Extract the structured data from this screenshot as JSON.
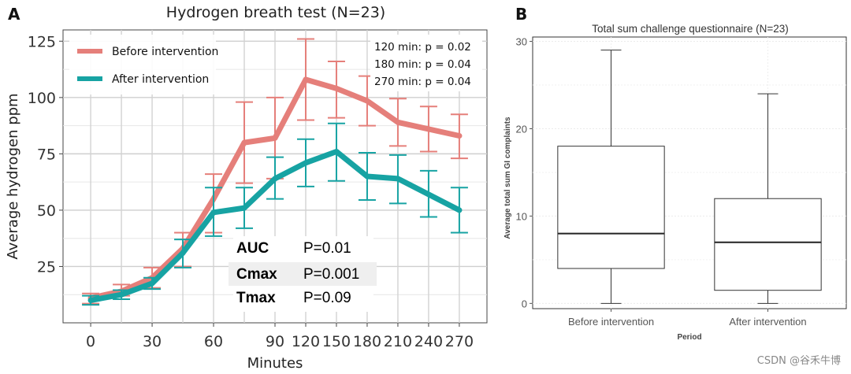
{
  "panel_a_letter": "A",
  "panel_b_letter": "B",
  "watermark": "CSDN @谷禾牛博",
  "chart_data": [
    {
      "type": "line",
      "title": "Hydrogen breath test (N=23)",
      "xlabel": "Minutes",
      "ylabel": "Average hydrogen ppm",
      "x": [
        0,
        15,
        30,
        45,
        60,
        75,
        90,
        120,
        150,
        180,
        210,
        240,
        270
      ],
      "x_ticks": [
        0,
        30,
        60,
        90,
        120,
        150,
        180,
        210,
        240,
        270
      ],
      "x_positions": [
        0,
        1,
        2,
        3,
        4,
        5,
        6,
        7,
        8,
        9,
        10,
        11,
        12
      ],
      "xlim": [
        -0.9,
        12.9
      ],
      "y_ticks": [
        25,
        50,
        75,
        100,
        125
      ],
      "ylim": [
        0,
        130
      ],
      "legend_position": "top-left",
      "series": [
        {
          "name": "Before intervention",
          "color": "#e57f7a",
          "values": [
            11,
            14,
            20,
            33,
            55,
            80,
            82,
            108,
            104,
            98.5,
            89,
            86,
            83
          ],
          "err_low": [
            8.5,
            12,
            15.5,
            25,
            40,
            62,
            64,
            90,
            91,
            87.5,
            78.5,
            76,
            73
          ],
          "err_high": [
            13,
            17,
            24.5,
            40,
            66,
            98,
            100,
            126,
            116,
            109.5,
            99.5,
            96,
            92.5
          ]
        },
        {
          "name": "After intervention",
          "color": "#17a3a3",
          "values": [
            10,
            12.5,
            17.5,
            31,
            49,
            51,
            64,
            71,
            76,
            65,
            64,
            57,
            50
          ],
          "err_low": [
            8,
            10.5,
            15,
            24.5,
            38.5,
            42,
            55,
            60.5,
            63,
            54.5,
            53,
            47,
            40
          ],
          "err_high": [
            12,
            14.5,
            20,
            37,
            60,
            60,
            73.5,
            81.5,
            88.5,
            75.5,
            74.5,
            67.5,
            60
          ]
        }
      ],
      "annotations": {
        "p_values": [
          "120 min: p = 0.02",
          "180 min: p = 0.04",
          "270 min: p = 0.04"
        ],
        "stats": [
          {
            "label": "AUC",
            "value": "P=0.01"
          },
          {
            "label": "Cmax",
            "value": "P=0.001"
          },
          {
            "label": "Tmax",
            "value": "P=0.09"
          }
        ]
      }
    },
    {
      "type": "box",
      "title": "Total sum challenge questionnaire (N=23)",
      "xlabel": "Period",
      "ylabel": "Average total sum GI complaints",
      "categories": [
        "Before intervention",
        "After intervention"
      ],
      "ylim": [
        -0.6,
        30.5
      ],
      "y_ticks": [
        0,
        10,
        20,
        30
      ],
      "boxes": [
        {
          "category": "Before intervention",
          "min": 0,
          "q1": 4,
          "median": 8,
          "q3": 18,
          "max": 29
        },
        {
          "category": "After intervention",
          "min": 0,
          "q1": 1.5,
          "median": 7,
          "q3": 12,
          "max": 24
        }
      ]
    }
  ]
}
